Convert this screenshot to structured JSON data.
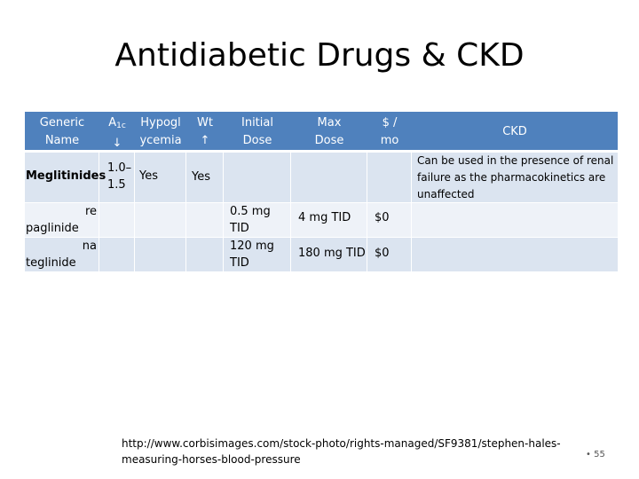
{
  "title": "Antidiabetic Drugs & CKD",
  "table": {
    "headers": {
      "generic_name": "Generic Name",
      "a1c_prefix": "A",
      "a1c_sub": "1c",
      "a1c_arrow": "↓",
      "hypoglycemia_line1": "Hypogl",
      "hypoglycemia_line2": "ycemia",
      "wt_line1": "Wt",
      "wt_line2": "↑",
      "initial_dose": "Initial Dose",
      "max_dose": "Max Dose",
      "cost_line1": "$ /",
      "cost_line2": "mo",
      "ckd": "CKD"
    },
    "rows": {
      "meglitinides": {
        "name": "Meglitinides",
        "a1c_line1": "1.0–",
        "a1c_line2": "1.5",
        "hypoglycemia": "Yes",
        "wt": "Yes",
        "ckd": "Can be used in the presence of renal failure as the pharmacokinetics are unaffected"
      },
      "repaglinide": {
        "name_line1": "re",
        "name_line2": "paglinide",
        "initial_dose": "0.5 mg TID",
        "max_dose": "4 mg TID",
        "cost": "$0"
      },
      "nateglinide": {
        "name_line1": "na",
        "name_line2": "teglinide",
        "initial_dose": "120 mg TID",
        "max_dose": "180 mg TID",
        "cost": "$0"
      }
    }
  },
  "source_url": "http://www.corbisimages.com/stock-photo/rights-managed/SF9381/stephen-hales-measuring-horses-blood-pressure",
  "slide_number": "• 55",
  "colors": {
    "header": "#4f81bd",
    "row_dark": "#dbe4f0",
    "row_light": "#eef2f8"
  }
}
